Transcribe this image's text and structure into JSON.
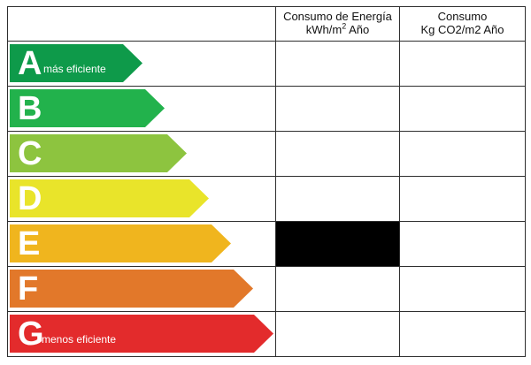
{
  "headers": {
    "col1_line1": "Consumo de Energía",
    "col1_line2": "kWh/m",
    "col1_sup": "2",
    "col1_line2_end": " Año",
    "col2_line1": "Consumo",
    "col2_line2": "Kg CO2/m2 Año"
  },
  "ratings": [
    {
      "letter": "A",
      "caption": "más eficiente",
      "color": "#0e9a4a"
    },
    {
      "letter": "B",
      "caption": "",
      "color": "#22b24c"
    },
    {
      "letter": "C",
      "caption": "",
      "color": "#8dc43f"
    },
    {
      "letter": "D",
      "caption": "",
      "color": "#e9e42a"
    },
    {
      "letter": "E",
      "caption": "",
      "color": "#f0b51e"
    },
    {
      "letter": "F",
      "caption": "",
      "color": "#e2782a"
    },
    {
      "letter": "G",
      "caption": "menos eficiente",
      "color": "#e32b2c"
    }
  ],
  "selected": {
    "rating": "E",
    "column": "energy",
    "fill_color": "#000000"
  }
}
